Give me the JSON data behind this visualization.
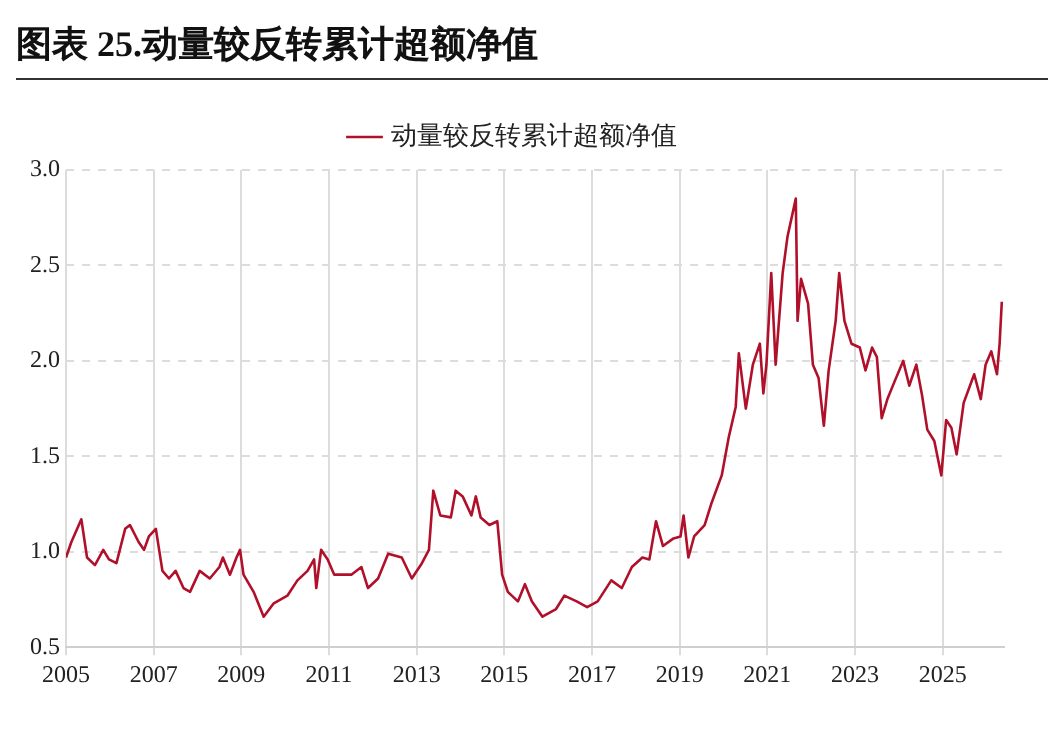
{
  "chart_data": {
    "type": "line",
    "title": "图表 25.动量较反转累计超额净值",
    "series": [
      {
        "name": "动量较反转累计超额净值",
        "color": "#b0102a",
        "x": [
          2005.0,
          2005.12,
          2005.35,
          2005.48,
          2005.66,
          2005.85,
          2005.98,
          2006.15,
          2006.35,
          2006.46,
          2006.66,
          2006.78,
          2006.89,
          2007.05,
          2007.2,
          2007.35,
          2007.5,
          2007.68,
          2007.83,
          2008.05,
          2008.28,
          2008.5,
          2008.58,
          2008.74,
          2008.89,
          2008.97,
          2009.05,
          2009.28,
          2009.51,
          2009.74,
          2010.05,
          2010.28,
          2010.51,
          2010.66,
          2010.71,
          2010.82,
          2010.97,
          2011.12,
          2011.51,
          2011.74,
          2011.89,
          2012.12,
          2012.35,
          2012.66,
          2012.89,
          2013.12,
          2013.28,
          2013.38,
          2013.54,
          2013.78,
          2013.89,
          2014.05,
          2014.25,
          2014.35,
          2014.46,
          2014.66,
          2014.84,
          2014.95,
          2015.08,
          2015.31,
          2015.47,
          2015.63,
          2015.87,
          2016.18,
          2016.37,
          2016.65,
          2016.89,
          2017.13,
          2017.44,
          2017.68,
          2017.91,
          2018.15,
          2018.31,
          2018.46,
          2018.62,
          2018.86,
          2019.02,
          2019.09,
          2019.2,
          2019.33,
          2019.57,
          2019.72,
          2019.96,
          2020.12,
          2020.28,
          2020.35,
          2020.51,
          2020.67,
          2020.83,
          2020.91,
          2020.98,
          2021.09,
          2021.19,
          2021.35,
          2021.46,
          2021.65,
          2021.69,
          2021.77,
          2021.93,
          2022.04,
          2022.17,
          2022.29,
          2022.4,
          2022.56,
          2022.64,
          2022.76,
          2022.92,
          2023.11,
          2023.24,
          2023.39,
          2023.5,
          2023.61,
          2023.74,
          2023.9,
          2024.1,
          2024.24,
          2024.4,
          2024.53,
          2024.65,
          2024.81,
          2024.97,
          2025.08,
          2025.2,
          2025.32,
          2025.48,
          2025.72,
          2025.87,
          2025.98,
          2026.11,
          2026.24,
          2026.3,
          2026.35
        ],
        "values": [
          0.97,
          1.05,
          1.17,
          0.97,
          0.93,
          1.01,
          0.96,
          0.94,
          1.12,
          1.14,
          1.05,
          1.01,
          1.08,
          1.12,
          0.9,
          0.86,
          0.9,
          0.81,
          0.79,
          0.9,
          0.86,
          0.92,
          0.97,
          0.88,
          0.97,
          1.01,
          0.88,
          0.79,
          0.66,
          0.73,
          0.77,
          0.85,
          0.9,
          0.96,
          0.81,
          1.01,
          0.96,
          0.88,
          0.88,
          0.92,
          0.81,
          0.86,
          0.99,
          0.97,
          0.86,
          0.94,
          1.01,
          1.32,
          1.19,
          1.18,
          1.32,
          1.29,
          1.19,
          1.29,
          1.18,
          1.14,
          1.16,
          0.88,
          0.79,
          0.74,
          0.83,
          0.74,
          0.66,
          0.7,
          0.77,
          0.74,
          0.71,
          0.74,
          0.85,
          0.81,
          0.92,
          0.97,
          0.96,
          1.16,
          1.03,
          1.07,
          1.08,
          1.19,
          0.97,
          1.08,
          1.14,
          1.25,
          1.4,
          1.6,
          1.76,
          2.04,
          1.75,
          1.98,
          2.09,
          1.83,
          1.98,
          2.46,
          1.98,
          2.46,
          2.65,
          2.85,
          2.21,
          2.43,
          2.3,
          1.98,
          1.91,
          1.66,
          1.95,
          2.21,
          2.46,
          2.21,
          2.09,
          2.07,
          1.95,
          2.07,
          2.02,
          1.7,
          1.8,
          1.89,
          2.0,
          1.87,
          1.98,
          1.82,
          1.64,
          1.58,
          1.4,
          1.69,
          1.65,
          1.51,
          1.78,
          1.93,
          1.8,
          1.98,
          2.05,
          1.93,
          2.09,
          2.31
        ]
      }
    ],
    "xlim": [
      2005,
      2026.4
    ],
    "xticks": [
      2005,
      2007,
      2009,
      2011,
      2013,
      2015,
      2017,
      2019,
      2021,
      2023,
      2025
    ],
    "ylim": [
      0.5,
      3.0
    ],
    "yticks": [
      {
        "value": 0.5,
        "label": "0.5"
      },
      {
        "value": 1.0,
        "label": "1.0"
      },
      {
        "value": 1.5,
        "label": "1.5"
      },
      {
        "value": 2.0,
        "label": "2.0"
      },
      {
        "value": 2.5,
        "label": "2.5"
      },
      {
        "value": 3.0,
        "label": "3.0"
      }
    ],
    "grid": true,
    "legend": "top",
    "marker": "none",
    "line_style": "solid"
  }
}
